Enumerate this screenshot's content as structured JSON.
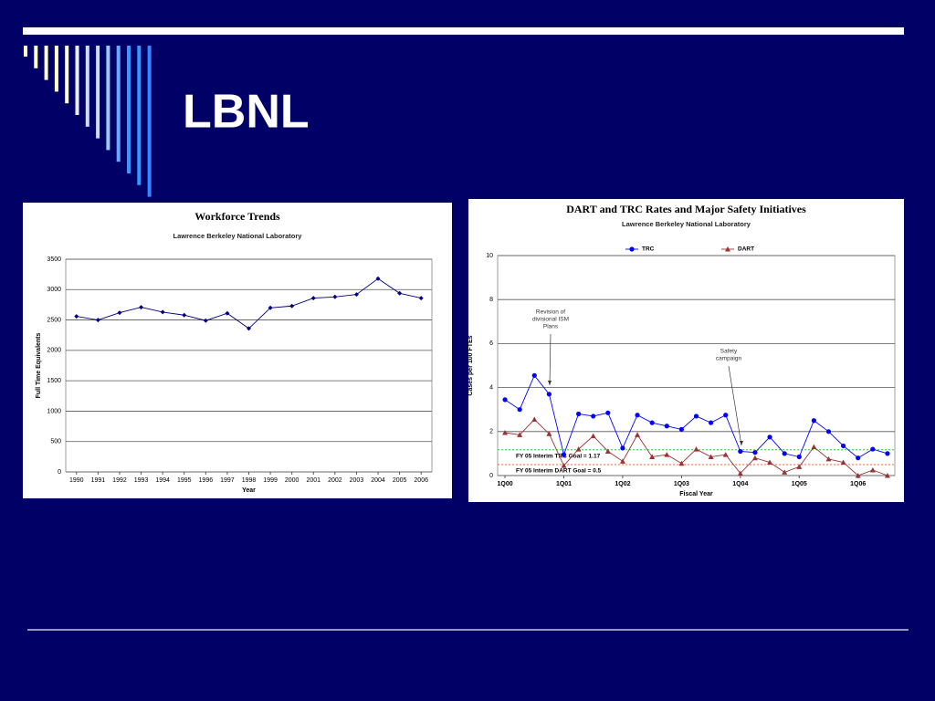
{
  "slide": {
    "title": "LBNL"
  },
  "chart_data": [
    {
      "type": "line",
      "title": "Workforce Trends",
      "subtitle": "Lawrence Berkeley National Laboratory",
      "x_label": "Year",
      "y_label": "Full Time Equivalents",
      "categories": [
        "1990",
        "1991",
        "1992",
        "1993",
        "1994",
        "1995",
        "1996",
        "1997",
        "1998",
        "1999",
        "2000",
        "2001",
        "2002",
        "2003",
        "2004",
        "2005",
        "2006"
      ],
      "values": [
        2560,
        2500,
        2620,
        2710,
        2630,
        2580,
        2490,
        2610,
        2360,
        2700,
        2730,
        2860,
        2880,
        2920,
        3180,
        2940,
        2860
      ],
      "color": "#000080",
      "marker": "diamond",
      "ylim": [
        0,
        3500
      ],
      "yticks": [
        0,
        500,
        1000,
        1500,
        2000,
        2500,
        3000,
        3500
      ],
      "grid": true
    },
    {
      "type": "line",
      "title": "DART and TRC Rates and Major Safety Initiatives",
      "subtitle": "Lawrence Berkeley National Laboratory",
      "x_label": "Fiscal Year",
      "y_label": "Cases per 100 FTEs",
      "categories": [
        "1Q00",
        null,
        null,
        null,
        "1Q01",
        null,
        null,
        null,
        "1Q02",
        null,
        null,
        null,
        "1Q03",
        null,
        null,
        null,
        "1Q04",
        null,
        null,
        null,
        "1Q05",
        null,
        null,
        null,
        "1Q06",
        null,
        null
      ],
      "series": [
        {
          "name": "TRC",
          "color": "#0000ff",
          "marker": "circle",
          "values": [
            3.45,
            3.0,
            4.55,
            3.7,
            0.95,
            2.8,
            2.7,
            2.85,
            1.25,
            2.75,
            2.4,
            2.25,
            2.1,
            2.7,
            2.4,
            2.75,
            1.1,
            1.05,
            1.75,
            1.0,
            0.85,
            2.5,
            2.0,
            1.35,
            0.8,
            1.2,
            1.0
          ]
        },
        {
          "name": "DART",
          "color": "#993333",
          "marker": "triangle",
          "values": [
            1.95,
            1.85,
            2.55,
            1.9,
            0.45,
            1.2,
            1.8,
            1.1,
            0.65,
            1.85,
            0.85,
            0.95,
            0.55,
            1.2,
            0.85,
            0.95,
            0.1,
            0.8,
            0.6,
            0.15,
            0.4,
            1.3,
            0.75,
            0.6,
            0.0,
            0.25,
            0.0
          ]
        }
      ],
      "goal_lines": [
        {
          "label": "FY 05 Interim TRC Goal = 1.17",
          "value": 1.17,
          "color": "#33cc33"
        },
        {
          "label": "FY 05 Interim DART Goal = 0.5",
          "value": 0.5,
          "color": "#ff6633"
        }
      ],
      "annotations": [
        {
          "lines": [
            "Revision of",
            "divisional ISM",
            "Plans"
          ]
        },
        {
          "lines": [
            "Safety",
            "campaign"
          ]
        }
      ],
      "legend": "top",
      "ylim": [
        0,
        10
      ],
      "yticks": [
        0,
        2,
        4,
        6,
        8,
        10
      ],
      "grid": true
    }
  ]
}
